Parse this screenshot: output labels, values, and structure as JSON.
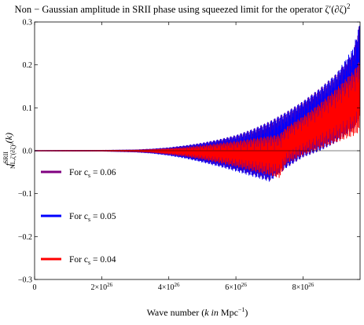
{
  "chart_data": {
    "type": "line",
    "title_text": "Non −  Gaussian amplitude in SRII phase using squeezed limit for the operator ζ′(∂ζ)",
    "title_sup": "2",
    "xlabel_prefix": "Wave number (",
    "xlabel_italic": "k in",
    "xlabel_unit": " Mpc",
    "xlabel_sup": "−1",
    "xlabel_suffix": ")",
    "ylabel_main": "f",
    "ylabel_sup": "SRII",
    "ylabel_sub": "NL,ζ′(∂ζ)²",
    "ylabel_arg": "(k)",
    "xlim": [
      0,
      9.7e+26
    ],
    "ylim": [
      -0.3,
      0.3
    ],
    "x_ticks": [
      {
        "value": 0,
        "label": "0",
        "exp": ""
      },
      {
        "value": 2e+26,
        "label": "2×10",
        "exp": "26"
      },
      {
        "value": 4e+26,
        "label": "4×10",
        "exp": "26"
      },
      {
        "value": 6e+26,
        "label": "6×10",
        "exp": "26"
      },
      {
        "value": 8e+26,
        "label": "8×10",
        "exp": "26"
      }
    ],
    "y_ticks": [
      {
        "value": 0.3,
        "label": "0.3"
      },
      {
        "value": 0.2,
        "label": "0.2"
      },
      {
        "value": 0.1,
        "label": "0.1"
      },
      {
        "value": 0.0,
        "label": "0.0"
      },
      {
        "value": -0.1,
        "label": "−0.1"
      },
      {
        "value": -0.2,
        "label": "−0.2"
      },
      {
        "value": -0.3,
        "label": "−0.3"
      }
    ],
    "legend_placement": "bottom-left",
    "legend_prefix": "For c",
    "legend_sub": "s",
    "series": [
      {
        "name": "For cs = 0.06",
        "legend_value": " = 0.06",
        "color": "#800080",
        "x": [
          0,
          2e+26,
          3e+26,
          3.5e+26,
          4e+26,
          4.5e+26,
          5e+26,
          5.5e+26,
          6e+26,
          6.5e+26,
          7e+26,
          7.5e+26,
          8e+26,
          8.5e+26,
          9e+26,
          9.5e+26,
          9.7e+26
        ],
        "upper": [
          0.0005,
          0.001,
          0.002,
          0.004,
          0.007,
          0.012,
          0.018,
          0.026,
          0.036,
          0.05,
          0.068,
          0.09,
          0.115,
          0.145,
          0.18,
          0.23,
          0.3
        ],
        "lower": [
          -0.0005,
          -0.001,
          -0.003,
          -0.005,
          -0.01,
          -0.016,
          -0.025,
          -0.035,
          -0.045,
          -0.057,
          -0.07,
          -0.04,
          -0.015,
          0.0,
          0.02,
          0.05,
          0.08
        ],
        "cutoff": 9.7e+26
      },
      {
        "name": "For cs = 0.05",
        "legend_value": " = 0.05",
        "color": "#0000ff",
        "x": [
          0,
          2e+26,
          3e+26,
          3.5e+26,
          4e+26,
          4.5e+26,
          5e+26,
          5.5e+26,
          6e+26,
          6.5e+26,
          7e+26,
          7.5e+26,
          8e+26,
          8.5e+26,
          9e+26,
          9.5e+26,
          9.7e+26
        ],
        "upper": [
          0.0005,
          0.001,
          0.002,
          0.004,
          0.007,
          0.012,
          0.018,
          0.026,
          0.036,
          0.05,
          0.068,
          0.09,
          0.115,
          0.145,
          0.18,
          0.24,
          0.3
        ],
        "lower": [
          -0.0005,
          -0.001,
          -0.003,
          -0.006,
          -0.011,
          -0.018,
          -0.027,
          -0.037,
          -0.048,
          -0.06,
          -0.072,
          -0.04,
          -0.015,
          0.0,
          0.02,
          0.05,
          0.08
        ],
        "cutoff": 9.7e+26
      },
      {
        "name": "For cs = 0.04",
        "legend_value": " = 0.04",
        "color": "#ff0000",
        "x": [
          0,
          2e+26,
          3e+26,
          3.5e+26,
          4e+26,
          4.5e+26,
          5e+26,
          5.5e+26,
          6e+26,
          6.5e+26,
          7e+26,
          7.3e+26,
          7.5e+26,
          8e+26,
          8.5e+26,
          9e+26,
          9.5e+26,
          9.7e+26
        ],
        "upper": [
          0.0004,
          0.0008,
          0.0015,
          0.003,
          0.005,
          0.008,
          0.012,
          0.017,
          0.022,
          0.028,
          0.034,
          0.038,
          0.055,
          0.08,
          0.11,
          0.145,
          0.185,
          0.21
        ],
        "lower": [
          -0.0004,
          -0.0008,
          -0.002,
          -0.004,
          -0.008,
          -0.013,
          -0.02,
          -0.028,
          -0.037,
          -0.047,
          -0.057,
          -0.063,
          -0.03,
          -0.01,
          0.005,
          0.02,
          0.035,
          0.045
        ],
        "cutoff": 9.7e+26
      }
    ]
  }
}
